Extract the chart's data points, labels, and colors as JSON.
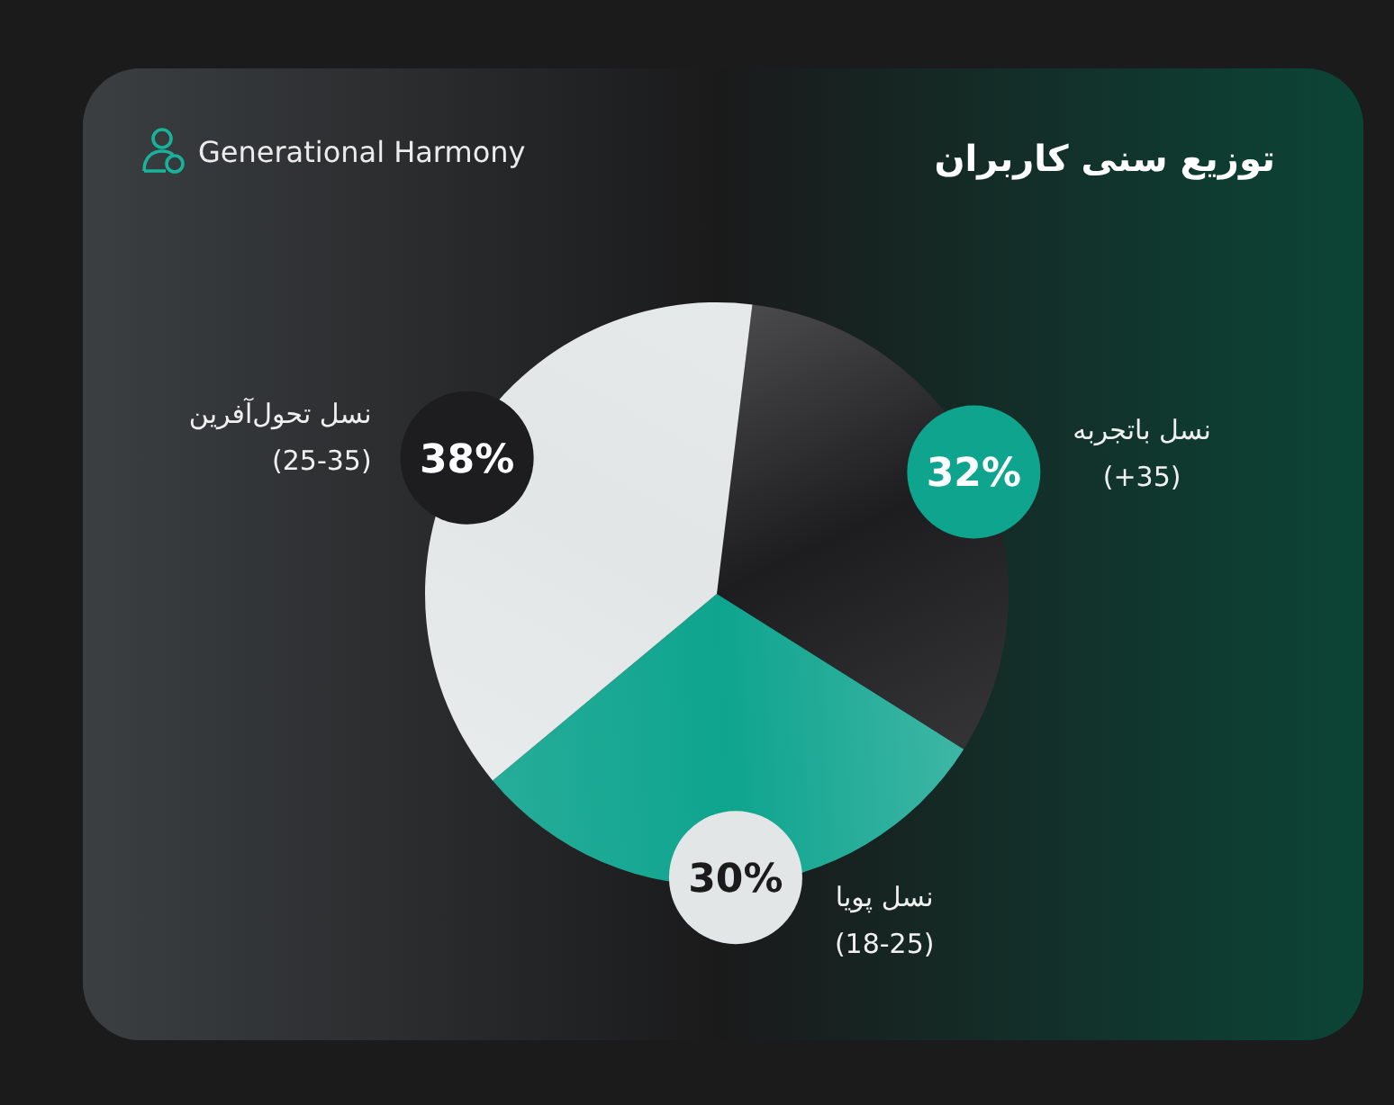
{
  "chart_data": {
    "type": "pie",
    "title": "توزیع سنی کاربران",
    "subtitle": "Generational Harmony",
    "categories": [
      "نسل باتجربه\n(+35)",
      "نسل پویا\n(18-25)",
      "نسل تحول‌آفرین\n(25-35)"
    ],
    "values": [
      32,
      30,
      38
    ],
    "colors": [
      "#1d1d20",
      "#0ea48e",
      "#e2e6e7"
    ],
    "value_labels": [
      "32%",
      "30%",
      "38%"
    ]
  }
}
